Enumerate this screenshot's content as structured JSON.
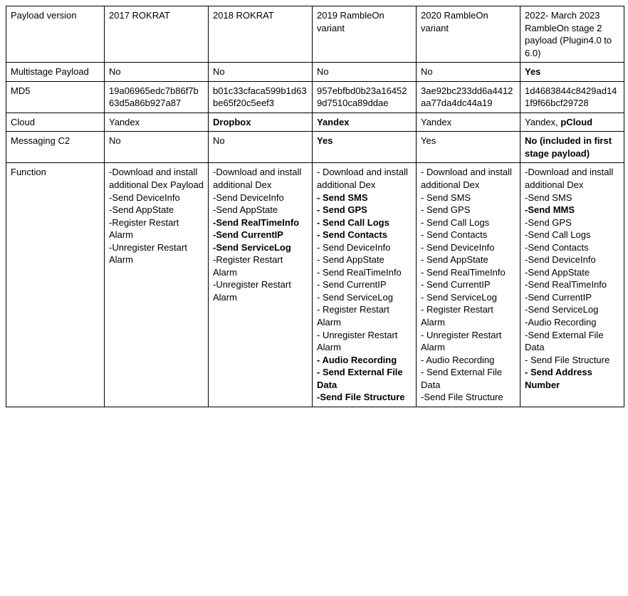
{
  "table": {
    "columns": [
      "label",
      "c2017",
      "c2018",
      "c2019",
      "c2020",
      "c2022"
    ],
    "header": {
      "label": "Payload version",
      "c2017": "2017 ROKRAT",
      "c2018": "2018 ROKRAT",
      "c2019": "2019 RambleOn variant",
      "c2020": "2020 RambleOn variant",
      "c2022": "2022- March 2023 RambleOn stage 2 payload (Plugin4.0 to 6.0)"
    },
    "rows": {
      "multistage": {
        "label": [
          {
            "t": "Multistage Payload"
          }
        ],
        "c2017": [
          {
            "t": "No"
          }
        ],
        "c2018": [
          {
            "t": "No"
          }
        ],
        "c2019": [
          {
            "t": "No"
          }
        ],
        "c2020": [
          {
            "t": "No"
          }
        ],
        "c2022": [
          {
            "t": "Yes",
            "b": true
          }
        ]
      },
      "md5": {
        "label": [
          {
            "t": "MD5"
          }
        ],
        "c2017": [
          {
            "t": "19a06965edc7b86f7b63d5a86b927a87"
          }
        ],
        "c2018": [
          {
            "t": "b01c33cfaca599b1d63be65f20c5eef3"
          }
        ],
        "c2019": [
          {
            "t": "957ebfbd0b23a164529d7510ca89ddae"
          }
        ],
        "c2020": [
          {
            "t": "3ae92bc233dd6a4412aa77da4dc44a19"
          }
        ],
        "c2022": [
          {
            "t": "1d4683844c8429ad141f9f66bcf29728"
          }
        ]
      },
      "cloud": {
        "label": [
          {
            "t": "Cloud"
          }
        ],
        "c2017": [
          {
            "t": "Yandex"
          }
        ],
        "c2018": [
          {
            "t": "Dropbox",
            "b": true
          }
        ],
        "c2019": [
          {
            "t": "Yandex",
            "b": true
          }
        ],
        "c2020": [
          {
            "t": "Yandex"
          }
        ],
        "c2022": [
          {
            "t": "Yandex, "
          },
          {
            "t": "pCloud",
            "b": true
          }
        ]
      },
      "messaging": {
        "label": [
          {
            "t": "Messaging C2"
          }
        ],
        "c2017": [
          {
            "t": "No"
          }
        ],
        "c2018": [
          {
            "t": "No"
          }
        ],
        "c2019": [
          {
            "t": "Yes",
            "b": true
          }
        ],
        "c2020": [
          {
            "t": "Yes"
          }
        ],
        "c2022": [
          {
            "t": "No (included in first stage payload)",
            "b": true
          }
        ]
      },
      "function": {
        "label": [
          {
            "t": "Function"
          }
        ],
        "c2017": [
          {
            "t": "-Download and install additional Dex Payload"
          },
          {
            "br": true
          },
          {
            "t": "-Send DeviceInfo"
          },
          {
            "br": true
          },
          {
            "t": "-Send AppState"
          },
          {
            "br": true
          },
          {
            "t": "-Register Restart Alarm"
          },
          {
            "br": true
          },
          {
            "t": "-Unregister Restart Alarm"
          }
        ],
        "c2018": [
          {
            "t": "-Download and install additional Dex"
          },
          {
            "br": true
          },
          {
            "t": "-Send DeviceInfo"
          },
          {
            "br": true
          },
          {
            "t": "-Send AppState"
          },
          {
            "br": true
          },
          {
            "t": "-Send RealTimeInfo",
            "b": true
          },
          {
            "br": true
          },
          {
            "t": "-Send CurrentIP",
            "b": true
          },
          {
            "br": true
          },
          {
            "t": "-Send ServiceLog",
            "b": true
          },
          {
            "br": true
          },
          {
            "t": "-Register Restart Alarm"
          },
          {
            "br": true
          },
          {
            "t": "-Unregister Restart Alarm"
          }
        ],
        "c2019": [
          {
            "t": "- Download and install additional Dex"
          },
          {
            "br": true
          },
          {
            "t": "- Send SMS",
            "b": true
          },
          {
            "br": true
          },
          {
            "t": "- Send GPS",
            "b": true
          },
          {
            "br": true
          },
          {
            "t": "- Send Call Logs",
            "b": true
          },
          {
            "br": true
          },
          {
            "t": "- Send Contacts",
            "b": true
          },
          {
            "br": true
          },
          {
            "t": "- Send DeviceInfo"
          },
          {
            "br": true
          },
          {
            "t": "- Send AppState"
          },
          {
            "br": true
          },
          {
            "t": "- Send RealTimeInfo"
          },
          {
            "br": true
          },
          {
            "t": "- Send CurrentIP"
          },
          {
            "br": true
          },
          {
            "t": "- Send ServiceLog"
          },
          {
            "br": true
          },
          {
            "t": "- Register Restart Alarm"
          },
          {
            "br": true
          },
          {
            "t": "- Unregister Restart Alarm"
          },
          {
            "br": true
          },
          {
            "t": "- Audio Recording",
            "b": true
          },
          {
            "br": true
          },
          {
            "t": "- Send External File Data",
            "b": true
          },
          {
            "br": true
          },
          {
            "t": "-Send File Structure",
            "b": true
          }
        ],
        "c2020": [
          {
            "t": "- Download and install additional Dex"
          },
          {
            "br": true
          },
          {
            "t": "- Send SMS"
          },
          {
            "br": true
          },
          {
            "t": "- Send GPS"
          },
          {
            "br": true
          },
          {
            "t": "- Send Call Logs"
          },
          {
            "br": true
          },
          {
            "t": "- Send Contacts"
          },
          {
            "br": true
          },
          {
            "t": "- Send DeviceInfo"
          },
          {
            "br": true
          },
          {
            "t": "- Send AppState"
          },
          {
            "br": true
          },
          {
            "t": "- Send RealTimeInfo"
          },
          {
            "br": true
          },
          {
            "t": "- Send CurrentIP"
          },
          {
            "br": true
          },
          {
            "t": "- Send ServiceLog"
          },
          {
            "br": true
          },
          {
            "t": "- Register Restart Alarm"
          },
          {
            "br": true
          },
          {
            "t": "- Unregister Restart Alarm"
          },
          {
            "br": true
          },
          {
            "t": "- Audio Recording"
          },
          {
            "br": true
          },
          {
            "t": "- Send External File Data"
          },
          {
            "br": true
          },
          {
            "t": "-Send File Structure"
          }
        ],
        "c2022": [
          {
            "t": "-Download and install additional Dex"
          },
          {
            "br": true
          },
          {
            "t": "-Send SMS"
          },
          {
            "br": true
          },
          {
            "t": "-Send MMS",
            "b": true
          },
          {
            "br": true
          },
          {
            "t": "-Send GPS"
          },
          {
            "br": true
          },
          {
            "t": "-Send Call Logs"
          },
          {
            "br": true
          },
          {
            "t": "-Send Contacts"
          },
          {
            "br": true
          },
          {
            "t": "-Send DeviceInfo"
          },
          {
            "br": true
          },
          {
            "t": "-Send AppState"
          },
          {
            "br": true
          },
          {
            "t": "-Send RealTimeInfo"
          },
          {
            "br": true
          },
          {
            "t": "-Send CurrentIP"
          },
          {
            "br": true
          },
          {
            "t": "-Send ServiceLog"
          },
          {
            "br": true
          },
          {
            "t": "-Audio Recording"
          },
          {
            "br": true
          },
          {
            "t": "-Send External File Data"
          },
          {
            "br": true
          },
          {
            "t": "- Send File Structure"
          },
          {
            "br": true
          },
          {
            "t": "- Send Address Number",
            "b": true
          }
        ]
      }
    },
    "rowOrder": [
      "multistage",
      "md5",
      "cloud",
      "messaging",
      "function"
    ]
  }
}
